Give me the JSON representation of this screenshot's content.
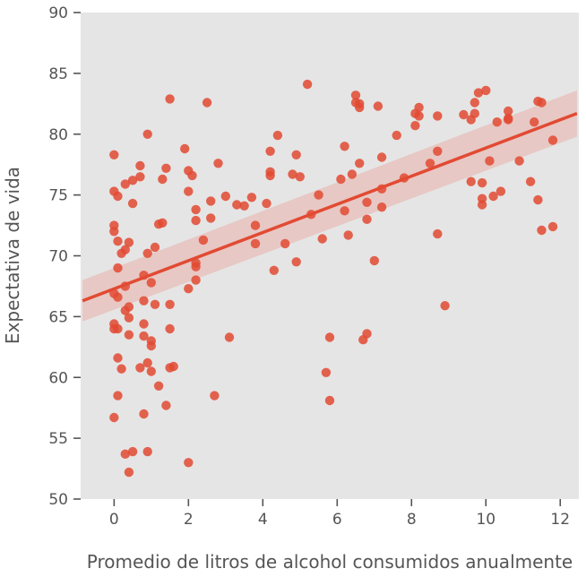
{
  "chart_data": {
    "type": "scatter",
    "title": "",
    "xlabel": "Promedio de litros de alcohol consumidos anualmente",
    "ylabel": "Expectativa de vida",
    "xlim": [
      -0.9,
      12.5
    ],
    "ylim": [
      50,
      90
    ],
    "xticks": [
      0,
      2,
      4,
      6,
      8,
      10,
      12
    ],
    "yticks": [
      50,
      55,
      60,
      65,
      70,
      75,
      80,
      85,
      90
    ],
    "grid": false,
    "legend": "none",
    "colors": {
      "background": "#e5e5e5",
      "points": "#e24a33",
      "line": "#e24a33",
      "band": "#e9a39b",
      "tick": "#555555"
    },
    "series": [
      {
        "points": [
          [
            0.0,
            78.3
          ],
          [
            0.0,
            75.3
          ],
          [
            0.1,
            74.9
          ],
          [
            0.3,
            75.9
          ],
          [
            0.5,
            76.2
          ],
          [
            0.7,
            76.5
          ],
          [
            0.7,
            77.4
          ],
          [
            0.5,
            74.3
          ],
          [
            0.0,
            72.5
          ],
          [
            0.0,
            72.0
          ],
          [
            0.1,
            71.2
          ],
          [
            0.4,
            71.1
          ],
          [
            0.2,
            70.2
          ],
          [
            0.3,
            70.5
          ],
          [
            0.1,
            69.0
          ],
          [
            0.3,
            67.5
          ],
          [
            0.0,
            66.9
          ],
          [
            0.1,
            66.6
          ],
          [
            0.0,
            64.4
          ],
          [
            0.1,
            64.0
          ],
          [
            0.3,
            65.5
          ],
          [
            0.4,
            65.8
          ],
          [
            0.4,
            64.9
          ],
          [
            0.0,
            64.0
          ],
          [
            0.4,
            63.5
          ],
          [
            0.1,
            61.6
          ],
          [
            0.2,
            60.7
          ],
          [
            0.1,
            58.5
          ],
          [
            0.0,
            56.7
          ],
          [
            0.3,
            53.7
          ],
          [
            0.5,
            53.9
          ],
          [
            0.4,
            52.2
          ],
          [
            0.9,
            80.0
          ],
          [
            0.8,
            68.4
          ],
          [
            1.0,
            67.8
          ],
          [
            0.8,
            66.3
          ],
          [
            0.8,
            64.4
          ],
          [
            0.8,
            63.4
          ],
          [
            1.0,
            63.0
          ],
          [
            1.0,
            62.6
          ],
          [
            0.7,
            60.8
          ],
          [
            0.9,
            61.2
          ],
          [
            1.0,
            60.5
          ],
          [
            0.8,
            57.0
          ],
          [
            0.9,
            53.9
          ],
          [
            1.1,
            70.7
          ],
          [
            1.2,
            72.6
          ],
          [
            1.3,
            72.7
          ],
          [
            0.9,
            70.2
          ],
          [
            1.1,
            66.0
          ],
          [
            1.2,
            59.3
          ],
          [
            1.3,
            76.3
          ],
          [
            1.4,
            77.2
          ],
          [
            1.5,
            82.9
          ],
          [
            1.5,
            66.0
          ],
          [
            1.5,
            64.0
          ],
          [
            1.5,
            60.8
          ],
          [
            1.6,
            60.9
          ],
          [
            1.4,
            57.7
          ],
          [
            1.9,
            78.8
          ],
          [
            2.0,
            77.0
          ],
          [
            2.1,
            76.6
          ],
          [
            2.0,
            75.3
          ],
          [
            2.2,
            73.8
          ],
          [
            2.2,
            72.9
          ],
          [
            2.2,
            69.4
          ],
          [
            2.2,
            69.1
          ],
          [
            2.2,
            68.0
          ],
          [
            2.0,
            67.3
          ],
          [
            2.0,
            53.0
          ],
          [
            2.4,
            71.3
          ],
          [
            2.5,
            82.6
          ],
          [
            2.6,
            74.5
          ],
          [
            2.6,
            73.1
          ],
          [
            2.8,
            77.6
          ],
          [
            2.7,
            58.5
          ],
          [
            3.0,
            74.9
          ],
          [
            3.3,
            74.2
          ],
          [
            3.5,
            74.1
          ],
          [
            3.7,
            74.8
          ],
          [
            3.8,
            72.5
          ],
          [
            3.8,
            71.0
          ],
          [
            3.1,
            63.3
          ],
          [
            4.1,
            74.3
          ],
          [
            4.2,
            78.6
          ],
          [
            4.2,
            76.9
          ],
          [
            4.2,
            76.6
          ],
          [
            4.4,
            79.9
          ],
          [
            4.3,
            68.8
          ],
          [
            4.6,
            71.0
          ],
          [
            4.8,
            76.7
          ],
          [
            4.9,
            78.3
          ],
          [
            5.0,
            76.5
          ],
          [
            4.9,
            69.5
          ],
          [
            5.2,
            84.1
          ],
          [
            5.3,
            73.4
          ],
          [
            5.5,
            75.0
          ],
          [
            5.6,
            71.4
          ],
          [
            5.8,
            63.3
          ],
          [
            5.7,
            60.4
          ],
          [
            5.8,
            58.1
          ],
          [
            6.1,
            76.3
          ],
          [
            6.2,
            79.0
          ],
          [
            6.2,
            73.7
          ],
          [
            6.3,
            71.7
          ],
          [
            6.4,
            76.7
          ],
          [
            6.5,
            83.2
          ],
          [
            6.5,
            82.6
          ],
          [
            6.6,
            82.5
          ],
          [
            6.6,
            82.2
          ],
          [
            6.6,
            77.6
          ],
          [
            6.8,
            74.4
          ],
          [
            6.8,
            73.0
          ],
          [
            6.8,
            63.6
          ],
          [
            6.7,
            63.1
          ],
          [
            7.0,
            69.6
          ],
          [
            7.1,
            82.3
          ],
          [
            7.2,
            78.1
          ],
          [
            7.2,
            75.5
          ],
          [
            7.2,
            74.0
          ],
          [
            7.6,
            79.9
          ],
          [
            7.8,
            76.4
          ],
          [
            8.1,
            81.7
          ],
          [
            8.1,
            80.7
          ],
          [
            8.2,
            82.2
          ],
          [
            8.2,
            81.5
          ],
          [
            8.5,
            77.6
          ],
          [
            8.7,
            81.5
          ],
          [
            8.7,
            78.6
          ],
          [
            8.7,
            71.8
          ],
          [
            8.9,
            65.9
          ],
          [
            9.4,
            81.6
          ],
          [
            9.6,
            81.2
          ],
          [
            9.6,
            76.1
          ],
          [
            9.7,
            82.6
          ],
          [
            9.7,
            81.7
          ],
          [
            9.8,
            83.4
          ],
          [
            9.9,
            76.0
          ],
          [
            9.9,
            74.7
          ],
          [
            9.9,
            74.2
          ],
          [
            10.0,
            83.6
          ],
          [
            10.1,
            77.8
          ],
          [
            10.2,
            74.9
          ],
          [
            10.3,
            81.0
          ],
          [
            10.4,
            75.3
          ],
          [
            10.6,
            81.9
          ],
          [
            10.6,
            81.3
          ],
          [
            10.6,
            81.2
          ],
          [
            10.9,
            77.8
          ],
          [
            11.2,
            76.1
          ],
          [
            11.3,
            81.0
          ],
          [
            11.4,
            82.7
          ],
          [
            11.5,
            82.6
          ],
          [
            11.4,
            74.6
          ],
          [
            11.5,
            72.1
          ],
          [
            11.8,
            79.5
          ],
          [
            11.8,
            72.4
          ]
        ]
      }
    ],
    "regression": {
      "line": [
        [
          -0.85,
          66.3
        ],
        [
          12.45,
          81.7
        ]
      ],
      "ci_upper": [
        [
          -0.85,
          68.0
        ],
        [
          12.45,
          83.6
        ]
      ],
      "ci_lower": [
        [
          -0.85,
          64.6
        ],
        [
          12.45,
          79.8
        ]
      ]
    }
  }
}
